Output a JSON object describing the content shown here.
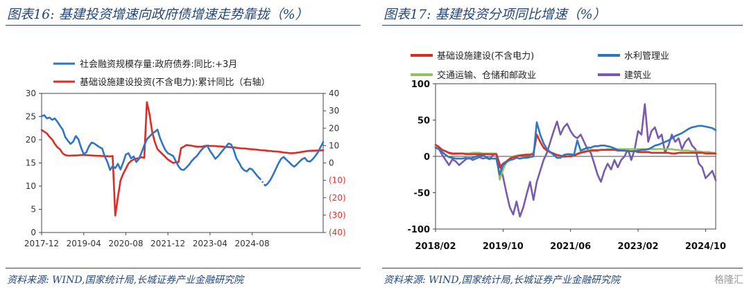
{
  "left": {
    "title": "图表16:  基建投资增速向政府债增速走势靠拢（%）",
    "source": "资料来源:  WIND,国家统计局,长城证券产业金融研究院"
  },
  "right": {
    "title": "图表17:  基建投资分项同比增速（%）",
    "source": "资料来源:  WIND,国家统计局,长城证券产业金融研究院"
  },
  "watermark": "格隆汇",
  "chart_data": [
    {
      "type": "line",
      "x_labels": [
        "2017-12",
        "2019-04",
        "2020-08",
        "2021-12",
        "2023-04",
        "2024-08"
      ],
      "y_ticks": [
        "0",
        "5",
        "10",
        "15",
        "20",
        "25",
        "30"
      ],
      "ylim": [
        0,
        30
      ],
      "y2_ticks": [
        "40",
        "30",
        "20",
        "10",
        "0",
        "(10)",
        "(20)",
        "(30)",
        "(40)"
      ],
      "y2lim": [
        -40,
        40
      ],
      "legend_position": "top",
      "grid": false,
      "series": [
        {
          "name": "社会融资规模存量:政府债券:同比:+3月",
          "color": "#2e75c2",
          "axis": "left",
          "values": [
            25.1,
            25.3,
            24.6,
            24.8,
            24.3,
            24.6,
            23.9,
            23.0,
            22.2,
            20.6,
            19.8,
            19.1,
            19.6,
            20.8,
            20.1,
            18.3,
            16.9,
            17.3,
            18.6,
            19.4,
            19.2,
            18.8,
            18.4,
            18.1,
            16.4,
            15.2,
            13.5,
            14.3,
            13.9,
            14.8,
            13.6,
            15.1,
            16.8,
            17.1,
            16.0,
            16.4,
            15.2,
            15.9,
            17.3,
            18.8,
            20.1,
            20.7,
            21.3,
            21.7,
            22.2,
            20.4,
            19.0,
            17.8,
            17.1,
            16.8,
            16.5,
            15.4,
            14.3,
            13.6,
            13.5,
            14.0,
            14.6,
            15.4,
            16.0,
            16.5,
            17.3,
            18.0,
            18.5,
            18.7,
            17.6,
            16.8,
            15.9,
            16.4,
            17.1,
            17.8,
            18.5,
            19.2,
            19.0,
            17.8,
            16.0,
            15.1,
            14.0,
            13.4,
            13.2,
            13.8,
            13.6,
            12.9,
            12.2,
            11.6,
            null,
            10.1,
            10.6,
            11.4,
            12.5,
            13.7,
            14.9,
            15.9,
            16.3,
            15.7,
            15.2,
            14.6,
            14.2,
            14.7,
            15.3,
            15.8,
            16.1,
            15.4,
            15.3,
            15.8,
            16.5,
            17.3,
            18.4,
            19.5
          ]
        },
        {
          "name": "基础设施建设投资(不含电力):累计同比（右轴）",
          "color": "#e12a26",
          "axis": "right",
          "values": [
            19.0,
            18.0,
            17.0,
            15.0,
            13.5,
            11.0,
            9.0,
            7.8,
            5.5,
            4.5,
            4.2,
            4.2,
            4.3,
            4.3,
            4.4,
            4.6,
            4.6,
            4.5,
            4.4,
            4.3,
            4.2,
            4.1,
            4.1,
            4.0,
            3.9,
            3.9,
            3.8,
            4.0,
            -30.3,
            -19.7,
            -10.0,
            -6.3,
            -3.3,
            -0.3,
            1.2,
            2.0,
            2.5,
            2.8,
            3.3,
            3.0,
            35.0,
            28.0,
            18.0,
            12.0,
            8.0,
            6.5,
            5.0,
            3.5,
            2.0,
            1.0,
            0.0,
            0.4,
            0.4,
            8.6,
            9.3,
            10.3,
            10.1,
            9.9,
            9.6,
            9.4,
            9.4,
            9.4,
            9.8,
            10.0,
            9.8,
            9.8,
            9.7,
            9.6,
            9.5,
            9.4,
            9.2,
            9.2,
            9.0,
            9.0,
            8.7,
            8.5,
            8.4,
            8.3,
            8.2,
            8.0,
            7.9,
            7.8,
            7.6,
            7.4,
            7.3,
            7.2,
            7.0,
            6.9,
            6.7,
            6.6,
            6.5,
            6.3,
            6.0,
            5.9,
            5.7,
            5.6,
            5.7,
            5.9,
            6.1,
            6.4,
            6.6,
            6.9,
            7.0,
            7.1,
            7.1,
            7.2,
            7.2,
            7.3
          ]
        }
      ]
    },
    {
      "type": "line",
      "x_labels": [
        "2018/02",
        "2019/10",
        "2021/06",
        "2023/02",
        "2024/10"
      ],
      "y_ticks": [
        "100",
        "50",
        "0",
        "-50",
        "-100"
      ],
      "ylim": [
        -100,
        100
      ],
      "legend_position": "top",
      "grid": false,
      "series": [
        {
          "name": "基础设施建设(不含电力)",
          "color": "#e12a26",
          "values": [
            16,
            13,
            9,
            7,
            5,
            4,
            4,
            4,
            4,
            3,
            3,
            3,
            3,
            3,
            3,
            3,
            3,
            3,
            3,
            -15,
            -10,
            -7,
            -3,
            -1,
            0,
            1,
            2,
            2,
            2,
            3,
            30,
            20,
            12,
            8,
            6,
            4,
            2,
            1,
            0,
            0,
            0,
            1,
            3,
            5,
            6,
            7,
            8,
            8,
            8,
            9,
            9,
            9,
            9,
            9,
            8,
            8,
            8,
            7,
            7,
            7,
            6,
            6,
            6,
            6,
            5,
            5,
            5,
            5,
            5,
            5,
            4,
            4,
            5,
            5,
            5,
            5,
            5,
            5,
            5,
            5,
            4,
            4,
            4,
            4
          ]
        },
        {
          "name": "水利管理业",
          "color": "#2e75c2",
          "values": [
            12,
            10,
            6,
            2,
            -1,
            -2,
            -3,
            -3,
            -3,
            -2,
            -3,
            -2,
            0,
            1,
            2,
            -1,
            -3,
            -3,
            -3,
            -25,
            -12,
            -8,
            -5,
            -4,
            -2,
            -3,
            -2,
            -2,
            -1,
            0,
            47,
            30,
            18,
            10,
            6,
            2,
            -2,
            -2,
            2,
            3,
            3,
            2,
            22,
            8,
            10,
            12,
            12,
            14,
            14,
            15,
            15,
            14,
            13,
            11,
            9,
            8,
            8,
            7,
            7,
            7,
            8,
            9,
            9,
            10,
            12,
            15,
            16,
            18,
            20,
            22,
            25,
            28,
            30,
            32,
            35,
            38,
            40,
            41,
            42,
            42,
            41,
            40,
            39,
            36
          ]
        },
        {
          "name": "交通运输、仓储和邮政业",
          "color": "#92c35f",
          "values": [
            14,
            12,
            9,
            7,
            4,
            3,
            3,
            4,
            4,
            4,
            4,
            5,
            5,
            5,
            4,
            4,
            4,
            4,
            4,
            -32,
            -18,
            -8,
            -3,
            0,
            1,
            2,
            2,
            3,
            3,
            5,
            30,
            20,
            12,
            8,
            5,
            3,
            1,
            0,
            -1,
            0,
            1,
            2,
            4,
            6,
            7,
            8,
            9,
            9,
            9,
            9,
            9,
            10,
            10,
            10,
            10,
            10,
            10,
            10,
            10,
            10,
            10,
            10,
            10,
            10,
            10,
            10,
            10,
            10,
            10,
            10,
            10,
            9,
            9,
            8,
            8,
            8,
            7,
            7,
            7,
            6,
            6,
            6,
            5,
            5
          ]
        },
        {
          "name": "建筑业",
          "color": "#7a5ab0",
          "values": [
            14,
            10,
            2,
            -5,
            -12,
            -4,
            -7,
            -12,
            -8,
            -4,
            -2,
            -5,
            -3,
            -1,
            -3,
            -2,
            -4,
            2,
            4,
            -10,
            -28,
            -50,
            -70,
            -80,
            -62,
            -83,
            -70,
            -52,
            -35,
            -60,
            -35,
            -20,
            -5,
            5,
            20,
            35,
            48,
            30,
            40,
            45,
            35,
            28,
            25,
            30,
            20,
            10,
            5,
            -10,
            -25,
            -35,
            -20,
            -10,
            -18,
            -5,
            -15,
            -5,
            0,
            10,
            -5,
            10,
            35,
            30,
            72,
            20,
            35,
            40,
            25,
            30,
            5,
            15,
            30,
            20,
            25,
            10,
            20,
            25,
            15,
            10,
            -10,
            -15,
            -30,
            -25,
            -20,
            -33
          ]
        }
      ]
    }
  ]
}
